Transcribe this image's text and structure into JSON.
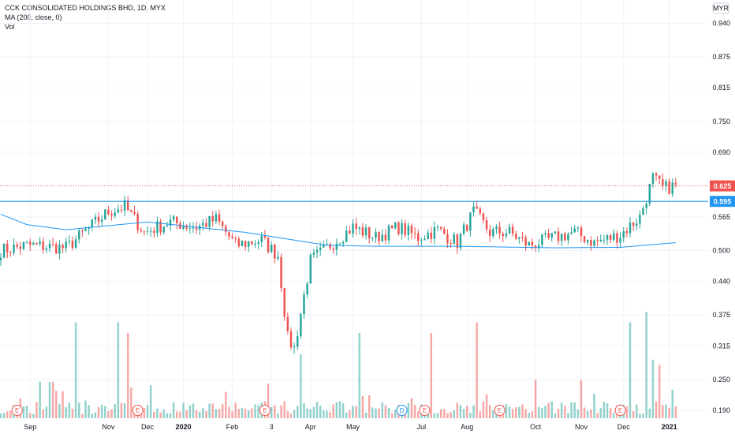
{
  "chart_data": {
    "type": "candlestick",
    "title": "CCK CONSOLIDATED HOLDINGS BHD, 1D, MYX",
    "indicators": [
      "MA (200, close, 0)",
      "Vol"
    ],
    "currency": "MYR",
    "y_ticks": [
      "0.940",
      "0.875",
      "0.815",
      "0.750",
      "0.690",
      "0.565",
      "0.500",
      "0.440",
      "0.375",
      "0.315",
      "0.250",
      "0.190"
    ],
    "y_tick_values": [
      0.94,
      0.875,
      0.815,
      0.75,
      0.69,
      0.565,
      0.5,
      0.44,
      0.375,
      0.315,
      0.25,
      0.19
    ],
    "ylim": [
      0.175,
      0.985
    ],
    "x_ticks": [
      "Sep",
      "Nov",
      "Dec",
      "2020",
      "Feb",
      "3",
      "Apr",
      "May",
      "Jul",
      "Aug",
      "Oct",
      "Nov",
      "Dec",
      "2021"
    ],
    "x_tick_bars": [
      9,
      33,
      45,
      56,
      71,
      83,
      95,
      108,
      129,
      143,
      164,
      178,
      191,
      205
    ],
    "n_bars": 208,
    "last_price": "0.625",
    "horizontal_line": "0.595",
    "horizontal_line_value": 0.595,
    "price_keypoints": [
      [
        0,
        0.5
      ],
      [
        8,
        0.51
      ],
      [
        20,
        0.505
      ],
      [
        33,
        0.575
      ],
      [
        38,
        0.585
      ],
      [
        44,
        0.535
      ],
      [
        52,
        0.555
      ],
      [
        60,
        0.545
      ],
      [
        66,
        0.56
      ],
      [
        72,
        0.51
      ],
      [
        80,
        0.52
      ],
      [
        85,
        0.49
      ],
      [
        88,
        0.33
      ],
      [
        90,
        0.31
      ],
      [
        95,
        0.48
      ],
      [
        100,
        0.505
      ],
      [
        108,
        0.545
      ],
      [
        115,
        0.525
      ],
      [
        122,
        0.545
      ],
      [
        128,
        0.525
      ],
      [
        134,
        0.54
      ],
      [
        140,
        0.515
      ],
      [
        145,
        0.575
      ],
      [
        150,
        0.535
      ],
      [
        156,
        0.535
      ],
      [
        162,
        0.51
      ],
      [
        170,
        0.525
      ],
      [
        176,
        0.535
      ],
      [
        182,
        0.515
      ],
      [
        190,
        0.53
      ],
      [
        196,
        0.565
      ],
      [
        200,
        0.64
      ],
      [
        203,
        0.62
      ],
      [
        207,
        0.625
      ]
    ],
    "ma_keypoints": [
      [
        0,
        0.57
      ],
      [
        8,
        0.55
      ],
      [
        20,
        0.54
      ],
      [
        33,
        0.548
      ],
      [
        45,
        0.555
      ],
      [
        60,
        0.545
      ],
      [
        75,
        0.535
      ],
      [
        90,
        0.52
      ],
      [
        100,
        0.51
      ],
      [
        115,
        0.508
      ],
      [
        140,
        0.508
      ],
      [
        170,
        0.505
      ],
      [
        190,
        0.506
      ],
      [
        207,
        0.515
      ]
    ],
    "volume_spikes": [
      [
        23,
        0.9
      ],
      [
        36,
        0.9
      ],
      [
        39,
        0.8
      ],
      [
        92,
        0.6
      ],
      [
        110,
        0.8
      ],
      [
        132,
        0.8
      ],
      [
        146,
        0.9
      ],
      [
        193,
        0.9
      ],
      [
        198,
        1.0
      ],
      [
        200,
        0.55
      ],
      [
        202,
        0.5
      ]
    ],
    "events": [
      {
        "bar": 5,
        "label": "E",
        "kind": "earnings"
      },
      {
        "bar": 42,
        "label": "E",
        "kind": "earnings"
      },
      {
        "bar": 81,
        "label": "E",
        "kind": "earnings"
      },
      {
        "bar": 123,
        "label": "D",
        "kind": "dividend"
      },
      {
        "bar": 130,
        "label": "E",
        "kind": "earnings"
      },
      {
        "bar": 153,
        "label": "E",
        "kind": "earnings"
      },
      {
        "bar": 190,
        "label": "E",
        "kind": "earnings"
      }
    ],
    "colors": {
      "up": "#26a69a",
      "down": "#ef5350",
      "ma": "#2196f3",
      "hline": "#2196f3",
      "last_price_line": "#ef5350",
      "grid": "#f0f3fa",
      "axis_text": "#131722"
    }
  }
}
